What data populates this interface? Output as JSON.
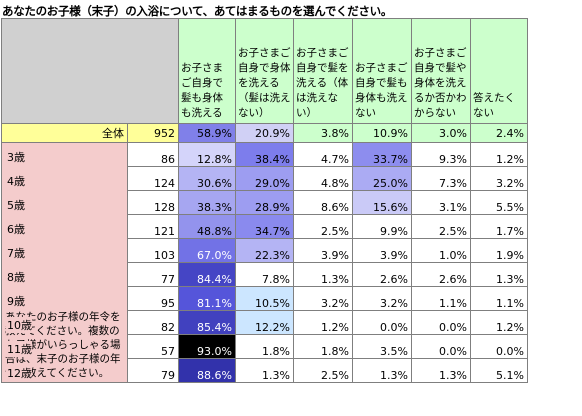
{
  "title": "あなたのお子様（末子）の入浴について、あてはまるものを選んでください。",
  "colors": {
    "header_bg": "#ccffcc",
    "total_bg": "#ffff99",
    "label_bg": "#f4cccc",
    "corner_bg": "#d0d0d0"
  },
  "chart_data": {
    "type": "table",
    "columns": [
      "お子さまご自身で髪も身体も洗える",
      "お子さまご自身で身体を洗える（髪は洗えない）",
      "お子さまご自身で髪を洗える（体は洗えない）",
      "お子さまご自身で髪も身体も洗えない",
      "お子さまご自身で髪や身体を洗えるか否かわからない",
      "答えたくない"
    ],
    "total": {
      "label": "全体",
      "n": "952",
      "values": [
        "58.9%",
        "20.9%",
        "3.8%",
        "10.9%",
        "3.0%",
        "2.4%"
      ]
    },
    "group_label": "あなたのお子様の年令を教えてください。複数のお子様がいらっしゃる場合は、末子のお子様の年令を教えてください。",
    "rows": [
      {
        "label": "3歳",
        "n": "86",
        "values": [
          "12.8%",
          "38.4%",
          "4.7%",
          "33.7%",
          "9.3%",
          "1.2%"
        ]
      },
      {
        "label": "4歳",
        "n": "124",
        "values": [
          "30.6%",
          "29.0%",
          "4.8%",
          "25.0%",
          "7.3%",
          "3.2%"
        ]
      },
      {
        "label": "5歳",
        "n": "128",
        "values": [
          "38.3%",
          "28.9%",
          "8.6%",
          "15.6%",
          "3.1%",
          "5.5%"
        ]
      },
      {
        "label": "6歳",
        "n": "121",
        "values": [
          "48.8%",
          "34.7%",
          "2.5%",
          "9.9%",
          "2.5%",
          "1.7%"
        ]
      },
      {
        "label": "7歳",
        "n": "103",
        "values": [
          "67.0%",
          "22.3%",
          "3.9%",
          "3.9%",
          "1.0%",
          "1.9%"
        ]
      },
      {
        "label": "8歳",
        "n": "77",
        "values": [
          "84.4%",
          "7.8%",
          "1.3%",
          "2.6%",
          "2.6%",
          "1.3%"
        ]
      },
      {
        "label": "9歳",
        "n": "95",
        "values": [
          "81.1%",
          "10.5%",
          "3.2%",
          "3.2%",
          "1.1%",
          "1.1%"
        ]
      },
      {
        "label": "10歳",
        "n": "82",
        "values": [
          "85.4%",
          "12.2%",
          "1.2%",
          "0.0%",
          "0.0%",
          "1.2%"
        ]
      },
      {
        "label": "11歳",
        "n": "57",
        "values": [
          "93.0%",
          "1.8%",
          "1.8%",
          "3.5%",
          "0.0%",
          "0.0%"
        ]
      },
      {
        "label": "12歳",
        "n": "79",
        "values": [
          "88.6%",
          "1.3%",
          "2.5%",
          "1.3%",
          "1.3%",
          "5.1%"
        ]
      }
    ]
  }
}
